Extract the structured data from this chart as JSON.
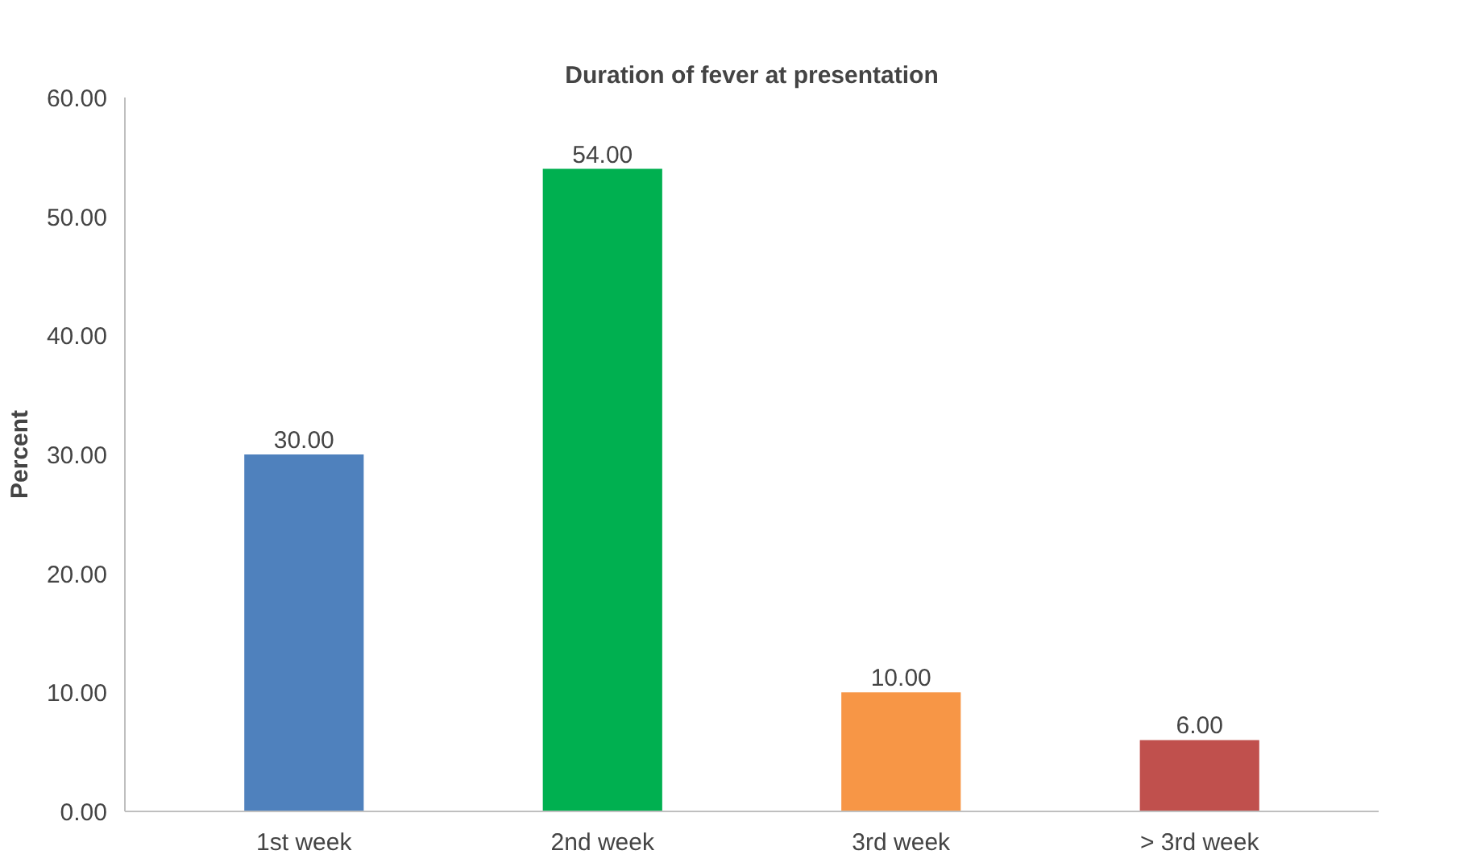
{
  "chart_data": {
    "type": "bar",
    "title": "Duration of fever at presentation",
    "ylabel": "Percent",
    "categories": [
      "1st week",
      "2nd week",
      "3rd week",
      "> 3rd week"
    ],
    "values": [
      30,
      54,
      10,
      6
    ],
    "colors": [
      "#4f81bd",
      "#00b050",
      "#f79646",
      "#c0504d"
    ],
    "value_labels": [
      "30.00",
      "54.00",
      "10.00",
      "6.00"
    ],
    "ylim": [
      0,
      60
    ],
    "yticks": [
      {
        "value": 0,
        "label": "0.00"
      },
      {
        "value": 10,
        "label": "10.00"
      },
      {
        "value": 20,
        "label": "20.00"
      },
      {
        "value": 30,
        "label": "30.00"
      },
      {
        "value": 40,
        "label": "40.00"
      },
      {
        "value": 50,
        "label": "50.00"
      },
      {
        "value": 60,
        "label": "60.00"
      }
    ],
    "grid": false
  }
}
